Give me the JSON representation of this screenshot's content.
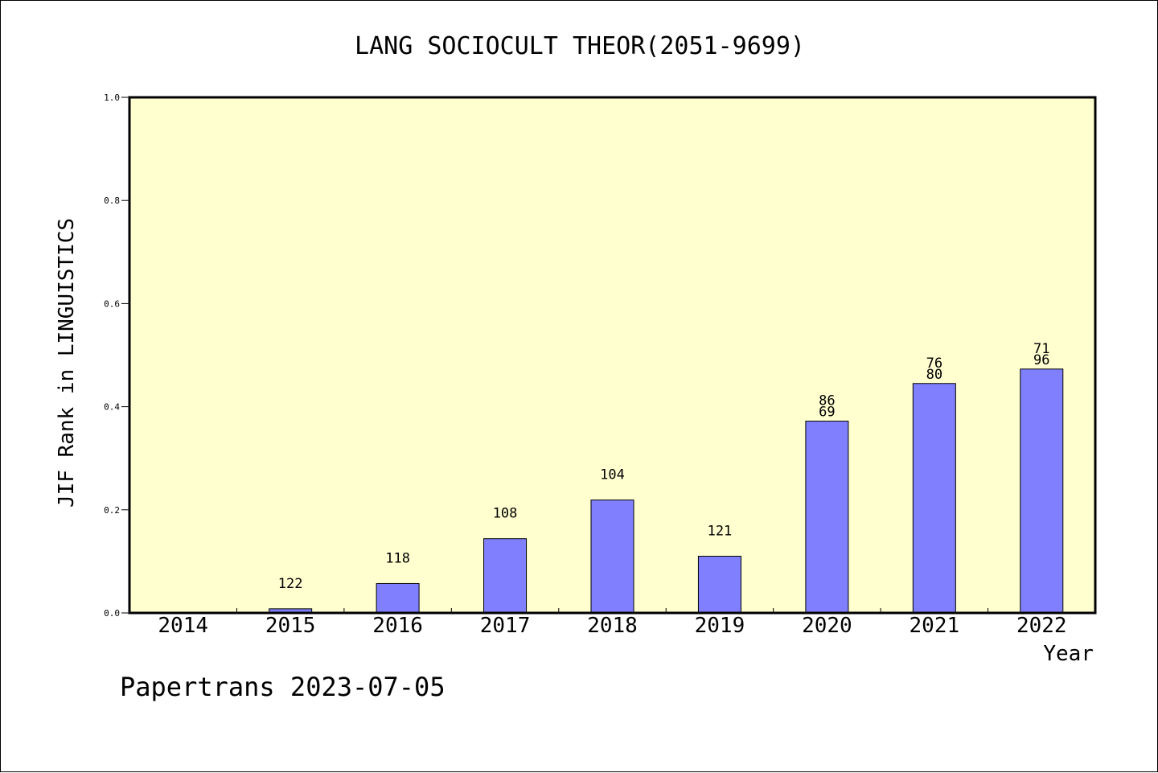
{
  "chart_data": {
    "type": "bar",
    "title": "LANG SOCIOCULT THEOR(2051-9699)",
    "xlabel": "Year",
    "ylabel": "JIF Rank in LINGUISTICS",
    "ylim": [
      0.0,
      1.0
    ],
    "yticks": [
      "0.0",
      "0.2",
      "0.4",
      "0.6",
      "0.8",
      "1.0"
    ],
    "categories": [
      "2014",
      "2015",
      "2016",
      "2017",
      "2018",
      "2019",
      "2020",
      "2021",
      "2022"
    ],
    "values": [
      0,
      0.008,
      0.057,
      0.144,
      0.219,
      0.11,
      0.372,
      0.445,
      0.473
    ],
    "labels": [
      [],
      [
        "122"
      ],
      [
        "118"
      ],
      [
        "108"
      ],
      [
        "104"
      ],
      [
        "121"
      ],
      [
        "86",
        "69"
      ],
      [
        "76",
        "80"
      ],
      [
        "71",
        "96"
      ]
    ],
    "bar_color": "#8080ff",
    "plot_background": "#ffffd0",
    "grid": false
  },
  "footer": {
    "credit": "Papertrans 2023-07-05"
  }
}
